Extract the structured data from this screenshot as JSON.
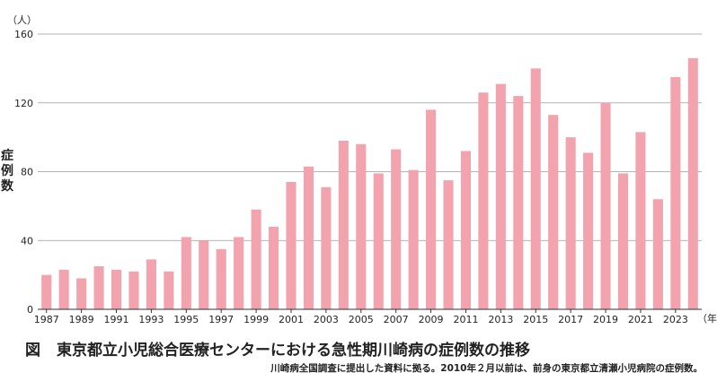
{
  "chart_data": {
    "type": "bar",
    "title": "東京都立小児総合医療センターにおける急性期川崎病の症例数の推移",
    "figure_label": "図",
    "note": "川崎病全国調査に提出した資料に拠る。2010年２月以前は、前身の東京都立清瀬小児病院の症例数。",
    "ylabel": "症例数",
    "y_unit": "（人）",
    "x_unit": "（年）",
    "ylim": [
      0,
      160
    ],
    "yticks": [
      0,
      40,
      80,
      120,
      160
    ],
    "grid": true,
    "bar_color": "#f2a3ae",
    "categories": [
      1987,
      1988,
      1989,
      1990,
      1991,
      1992,
      1993,
      1994,
      1995,
      1996,
      1997,
      1998,
      1999,
      2000,
      2001,
      2002,
      2003,
      2004,
      2005,
      2006,
      2007,
      2008,
      2009,
      2010,
      2011,
      2012,
      2013,
      2014,
      2015,
      2016,
      2017,
      2018,
      2019,
      2020,
      2021,
      2022,
      2023,
      2024
    ],
    "xtick_labels": [
      1987,
      1989,
      1991,
      1993,
      1995,
      1997,
      1999,
      2001,
      2003,
      2005,
      2007,
      2009,
      2011,
      2013,
      2015,
      2017,
      2019,
      2021,
      2023
    ],
    "values": [
      20,
      23,
      18,
      25,
      23,
      22,
      29,
      22,
      42,
      40,
      35,
      42,
      58,
      48,
      74,
      83,
      71,
      98,
      96,
      79,
      93,
      81,
      116,
      75,
      92,
      126,
      131,
      124,
      140,
      113,
      100,
      91,
      120,
      79,
      103,
      64,
      135,
      146
    ]
  }
}
